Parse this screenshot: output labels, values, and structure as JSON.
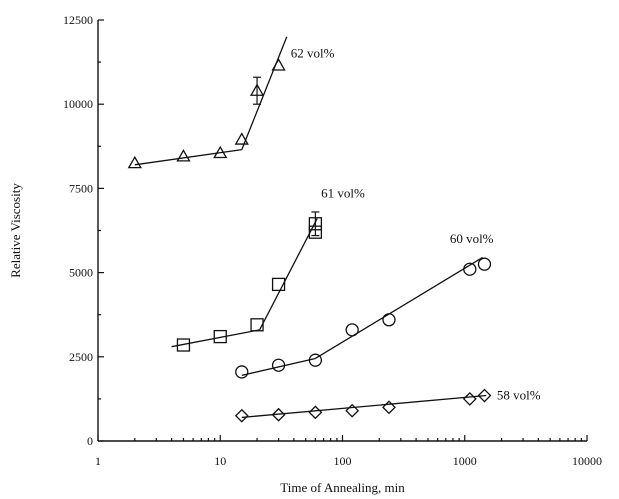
{
  "chart_data": {
    "type": "scatter",
    "xlabel": "Time of Annealing, min",
    "ylabel": "Relative Viscosity",
    "xscale": "log",
    "xlim": [
      1,
      10000
    ],
    "ylim": [
      0,
      12500
    ],
    "xticks": [
      {
        "value": 1,
        "label": "1"
      },
      {
        "value": 10,
        "label": "10"
      },
      {
        "value": 100,
        "label": "100"
      },
      {
        "value": 1000,
        "label": "1000"
      },
      {
        "value": 10000,
        "label": "10000"
      }
    ],
    "yticks": [
      {
        "value": 0,
        "label": "0"
      },
      {
        "value": 2500,
        "label": "2500"
      },
      {
        "value": 5000,
        "label": "5000"
      },
      {
        "value": 7500,
        "label": "7500"
      },
      {
        "value": 10000,
        "label": "10000"
      },
      {
        "value": 12500,
        "label": "12500"
      }
    ],
    "grid": false,
    "series": [
      {
        "name": "62 vol%",
        "marker": "triangle",
        "x": [
          2,
          5,
          10,
          15,
          20,
          30
        ],
        "y": [
          8250,
          8450,
          8550,
          8950,
          10400,
          11150
        ],
        "error": [
          0,
          0,
          0,
          0,
          400,
          0
        ],
        "fit": [
          [
            [
              2,
              8200
            ],
            [
              15,
              8650
            ]
          ],
          [
            [
              15,
              8650
            ],
            [
              35,
              12000
            ]
          ]
        ],
        "label_at": [
          35,
          11500
        ]
      },
      {
        "name": "61 vol%",
        "marker": "square",
        "x": [
          5,
          10,
          20,
          30,
          60,
          60
        ],
        "y": [
          2850,
          3100,
          3450,
          4650,
          6200,
          6450
        ],
        "error": [
          0,
          0,
          0,
          0,
          0,
          350
        ],
        "fit": [
          [
            [
              4,
              2800
            ],
            [
              21,
              3300
            ]
          ],
          [
            [
              21,
              3300
            ],
            [
              62,
              6600
            ]
          ]
        ],
        "label_at": [
          62,
          7350
        ]
      },
      {
        "name": "60 vol%",
        "marker": "circle",
        "x": [
          15,
          30,
          60,
          120,
          240,
          1100,
          1450
        ],
        "y": [
          2050,
          2250,
          2400,
          3300,
          3600,
          5100,
          5250
        ],
        "error": [
          0,
          0,
          0,
          0,
          0,
          0,
          0
        ],
        "fit": [
          [
            [
              15,
              1950
            ],
            [
              60,
              2450
            ]
          ],
          [
            [
              60,
              2450
            ],
            [
              1400,
              5450
            ]
          ]
        ],
        "label_at": [
          700,
          6000
        ]
      },
      {
        "name": "58 vol%",
        "marker": "diamond",
        "x": [
          15,
          30,
          60,
          120,
          240,
          1100,
          1450
        ],
        "y": [
          750,
          780,
          850,
          900,
          1000,
          1250,
          1350
        ],
        "error": [
          0,
          0,
          0,
          0,
          0,
          0,
          0
        ],
        "fit": [
          [
            [
              15,
              700
            ],
            [
              1500,
              1350
            ]
          ]
        ],
        "label_at": [
          1700,
          1350
        ]
      }
    ]
  }
}
